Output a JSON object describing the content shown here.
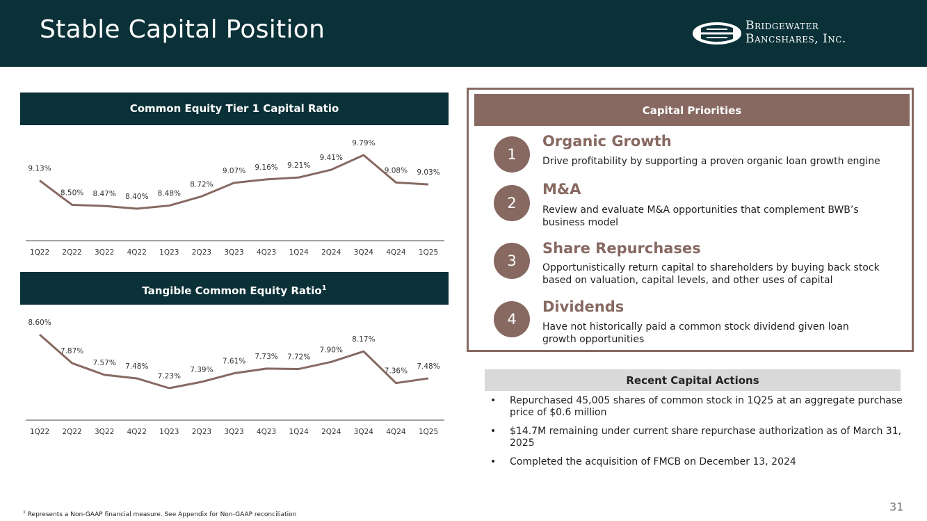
{
  "title": "Stable Capital Position",
  "logo": {
    "line1": "Bridgewater",
    "line2": "Bancshares, Inc."
  },
  "colors": {
    "dark_teal": "#0b3138",
    "mauve": "#876962",
    "gray": "#d9d9d9"
  },
  "cet1": {
    "header": "Common Equity Tier 1 Capital Ratio"
  },
  "tce": {
    "header": "Tangible Common Equity Ratio",
    "header_sup": "1"
  },
  "chart_data": [
    {
      "type": "line",
      "title": "Common Equity Tier 1 Capital Ratio",
      "categories": [
        "1Q22",
        "2Q22",
        "3Q22",
        "4Q22",
        "1Q23",
        "2Q23",
        "3Q23",
        "4Q23",
        "1Q24",
        "2Q24",
        "3Q24",
        "4Q24",
        "1Q25"
      ],
      "values": [
        9.13,
        8.5,
        8.47,
        8.4,
        8.48,
        8.72,
        9.07,
        9.16,
        9.21,
        9.41,
        9.79,
        9.08,
        9.03
      ],
      "labels": [
        "9.13%",
        "8.50%",
        "8.47%",
        "8.40%",
        "8.48%",
        "8.72%",
        "9.07%",
        "9.16%",
        "9.21%",
        "9.41%",
        "9.79%",
        "9.08%",
        "9.03%"
      ],
      "color": "#876962",
      "grid": false
    },
    {
      "type": "line",
      "title": "Tangible Common Equity Ratio",
      "categories": [
        "1Q22",
        "2Q22",
        "3Q22",
        "4Q22",
        "1Q23",
        "2Q23",
        "3Q23",
        "4Q23",
        "1Q24",
        "2Q24",
        "3Q24",
        "4Q24",
        "1Q25"
      ],
      "values": [
        8.6,
        7.87,
        7.57,
        7.48,
        7.23,
        7.39,
        7.61,
        7.73,
        7.72,
        7.9,
        8.17,
        7.36,
        7.48
      ],
      "labels": [
        "8.60%",
        "7.87%",
        "7.57%",
        "7.48%",
        "7.23%",
        "7.39%",
        "7.61%",
        "7.73%",
        "7.72%",
        "7.90%",
        "8.17%",
        "7.36%",
        "7.48%"
      ],
      "color": "#876962",
      "grid": false
    }
  ],
  "priorities": {
    "header": "Capital Priorities",
    "items": [
      {
        "num": "1",
        "title": "Organic Growth",
        "desc": "Drive profitability by supporting a proven organic loan growth engine"
      },
      {
        "num": "2",
        "title": "M&A",
        "desc": "Review and evaluate M&A opportunities that complement BWB’s business model"
      },
      {
        "num": "3",
        "title": "Share Repurchases",
        "desc": "Opportunistically return capital to shareholders by buying back stock based on valuation, capital levels, and other uses of capital"
      },
      {
        "num": "4",
        "title": "Dividends",
        "desc": "Have not historically paid a common stock dividend given loan growth opportunities"
      }
    ]
  },
  "actions": {
    "header": "Recent Capital Actions",
    "bullet": "•",
    "items": [
      "Repurchased 45,005 shares of common stock in 1Q25 at an aggregate purchase price of $0.6 million",
      "$14.7M remaining under current share repurchase authorization as of March 31, 2025",
      "Completed the acquisition of FMCB on December 13, 2024"
    ]
  },
  "footnote": {
    "sup": "1",
    "text": "Represents a Non-GAAP financial measure. See Appendix for Non-GAAP reconciliation"
  },
  "page_number": "31"
}
